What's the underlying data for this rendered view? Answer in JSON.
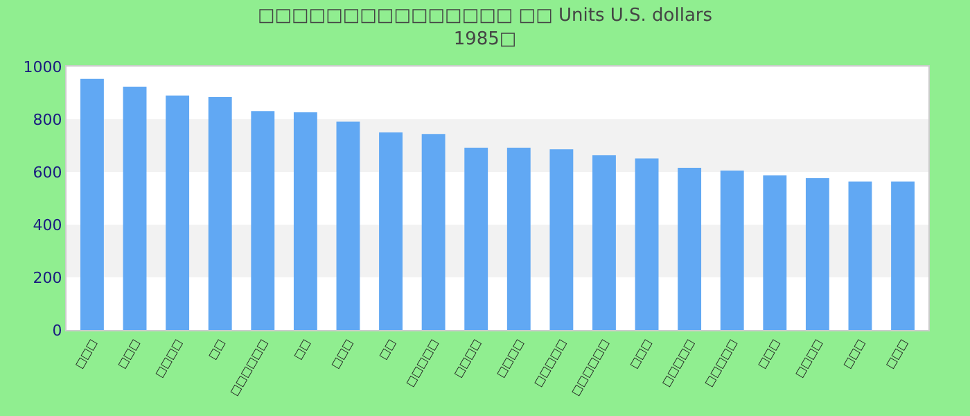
{
  "chart_data": {
    "type": "bar",
    "title": "□□□□□□□□□□□□□□□ □□ Units U.S. dollars",
    "subtitle": "1985□",
    "categories": [
      "□□□",
      "□□□",
      "□□□□",
      "□□",
      "□□□□□□",
      "□□",
      "□□□",
      "□□",
      "□□□□□",
      "□□□□",
      "□□□□",
      "□□□□□",
      "□□□□□□",
      "□□□",
      "□□□□□",
      "□□□□□",
      "□□□",
      "□□□□",
      "□□□",
      "□□□"
    ],
    "values": [
      953,
      924,
      890,
      884,
      831,
      826,
      791,
      750,
      744,
      692,
      692,
      686,
      663,
      651,
      616,
      605,
      587,
      576,
      564,
      564
    ],
    "color": "#61a8f3",
    "ylim": [
      0,
      1000
    ],
    "yticks": [
      0,
      200,
      400,
      600,
      800,
      1000
    ],
    "legend": false,
    "bands": [
      {
        "axis": "y",
        "from": 200,
        "to": 400,
        "color": "#f2f2f2"
      },
      {
        "axis": "y",
        "from": 600,
        "to": 800,
        "color": "#f2f2f2"
      }
    ]
  }
}
